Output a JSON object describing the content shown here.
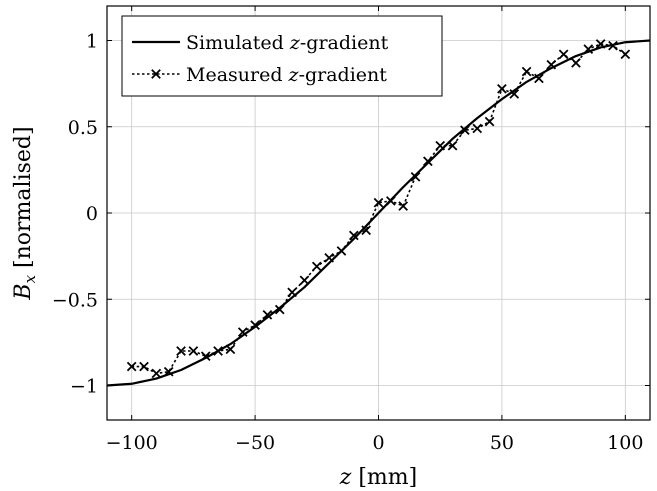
{
  "chart_data": {
    "type": "line",
    "title": "",
    "xlabel": "z [mm]",
    "ylabel": "B_x [normalised]",
    "xlim": [
      -110,
      110
    ],
    "ylim": [
      -1.2,
      1.2
    ],
    "x_ticks": [
      -100,
      -50,
      0,
      50,
      100
    ],
    "x_tick_labels": [
      "−100",
      "−50",
      "0",
      "50",
      "100"
    ],
    "y_ticks": [
      -1,
      -0.5,
      0,
      0.5,
      1
    ],
    "y_tick_labels": [
      "−1",
      "−0.5",
      "0",
      "0.5",
      "1"
    ],
    "grid": true,
    "legend_position": "top-left",
    "series": [
      {
        "name": "Simulated z-gradient",
        "style": "solid",
        "color": "#000000",
        "x": [
          -110,
          -100,
          -90,
          -80,
          -70,
          -60,
          -50,
          -40,
          -30,
          -20,
          -10,
          0,
          10,
          20,
          30,
          40,
          50,
          60,
          70,
          80,
          90,
          100,
          110
        ],
        "y": [
          -1.0,
          -0.99,
          -0.96,
          -0.91,
          -0.84,
          -0.76,
          -0.66,
          -0.55,
          -0.43,
          -0.29,
          -0.15,
          0.0,
          0.15,
          0.29,
          0.43,
          0.55,
          0.66,
          0.76,
          0.84,
          0.91,
          0.96,
          0.99,
          1.0
        ]
      },
      {
        "name": "Measured z-gradient",
        "style": "dotted",
        "marker": "x",
        "color": "#000000",
        "x": [
          -100,
          -95,
          -90,
          -85,
          -80,
          -75,
          -70,
          -65,
          -60,
          -55,
          -50,
          -45,
          -40,
          -35,
          -30,
          -25,
          -20,
          -15,
          -10,
          -5,
          0,
          5,
          10,
          15,
          20,
          25,
          30,
          35,
          40,
          45,
          50,
          55,
          60,
          65,
          70,
          75,
          80,
          85,
          90,
          95,
          100
        ],
        "y": [
          -0.89,
          -0.89,
          -0.93,
          -0.92,
          -0.8,
          -0.8,
          -0.83,
          -0.8,
          -0.79,
          -0.69,
          -0.65,
          -0.59,
          -0.56,
          -0.46,
          -0.39,
          -0.31,
          -0.26,
          -0.22,
          -0.13,
          -0.1,
          0.06,
          0.07,
          0.04,
          0.21,
          0.3,
          0.39,
          0.39,
          0.48,
          0.49,
          0.53,
          0.72,
          0.69,
          0.82,
          0.78,
          0.86,
          0.92,
          0.87,
          0.95,
          0.98,
          0.97,
          0.92
        ]
      }
    ],
    "legend": {
      "entries": [
        {
          "prefix": "Simulated ",
          "var": "z",
          "suffix": "-gradient"
        },
        {
          "prefix": "Measured ",
          "var": "z",
          "suffix": "-gradient"
        }
      ]
    },
    "axis_label_parts": {
      "x_var": "z",
      "x_unit": " [mm]",
      "y_var": "B",
      "y_sub": "x",
      "y_unit": " [normalised]"
    }
  }
}
